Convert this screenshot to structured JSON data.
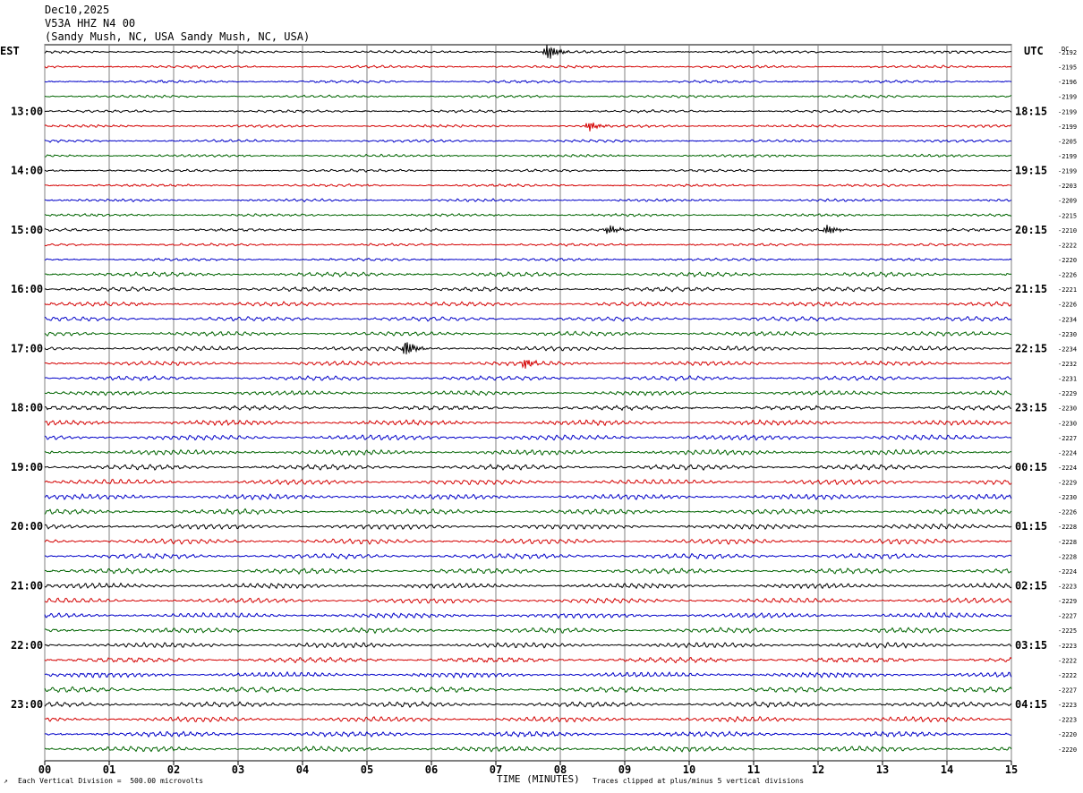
{
  "header": {
    "date": "Dec10,2025",
    "station": "V53A HHZ N4 00",
    "location": "(Sandy Mush, NC, USA Sandy Mush, NC, USA)"
  },
  "left_timezone": "EST",
  "right_timezone": "UTC",
  "dc_label": "DC",
  "footer": {
    "division_note": "Each Vertical Division =  500.00 microvolts",
    "xlabel": "TIME (MINUTES)",
    "clip_note": "Traces clipped at plus/minus 5 vertical divisions"
  },
  "colors": {
    "trace_cycle": [
      "#000000",
      "#d40000",
      "#0000c8",
      "#006400"
    ],
    "grid": "#808080"
  },
  "chart_data": {
    "type": "line",
    "title": "V53A HHZ N4 00",
    "xlabel": "TIME (MINUTES)",
    "xlim": [
      0,
      15
    ],
    "x_ticks": [
      "00",
      "01",
      "02",
      "03",
      "04",
      "05",
      "06",
      "07",
      "08",
      "09",
      "10",
      "11",
      "12",
      "13",
      "14",
      "15"
    ],
    "left_hour_labels": [
      "13:00",
      "14:00",
      "15:00",
      "16:00",
      "17:00",
      "18:00",
      "19:00",
      "20:00",
      "21:00",
      "22:00",
      "23:00"
    ],
    "right_hour_labels": [
      "18:15",
      "19:15",
      "20:15",
      "21:15",
      "22:15",
      "23:15",
      "00:15",
      "01:15",
      "02:15",
      "03:15",
      "04:15"
    ],
    "dc_offsets": [
      "-2192",
      "-2195",
      "-2196",
      "-2199",
      "-2199",
      "-2199",
      "-2205",
      "-2199",
      "-2199",
      "-2203",
      "-2209",
      "-2215",
      "-2210",
      "-2222",
      "-2220",
      "-2226",
      "-2221",
      "-2226",
      "-2234",
      "-2230",
      "-2234",
      "-2232",
      "-2231",
      "-2229",
      "-2230",
      "-2230",
      "-2227",
      "-2224",
      "-2224",
      "-2229",
      "-2230",
      "-2226",
      "-2228",
      "-2228",
      "-2228",
      "-2224",
      "-2223",
      "-2229",
      "-2227",
      "-2225",
      "-2223",
      "-2222",
      "-2222",
      "-2227",
      "-2223",
      "-2223",
      "-2220",
      "-2220"
    ],
    "trace_count": 48,
    "events": [
      {
        "trace": 0,
        "minute": 7.8,
        "amplitude": "large"
      },
      {
        "trace": 5,
        "minute": 8.45,
        "amplitude": "medium"
      },
      {
        "trace": 12,
        "minute": 8.75,
        "amplitude": "medium"
      },
      {
        "trace": 12,
        "minute": 12.15,
        "amplitude": "medium"
      },
      {
        "trace": 20,
        "minute": 5.6,
        "amplitude": "large"
      },
      {
        "trace": 21,
        "minute": 7.45,
        "amplitude": "medium"
      }
    ]
  }
}
